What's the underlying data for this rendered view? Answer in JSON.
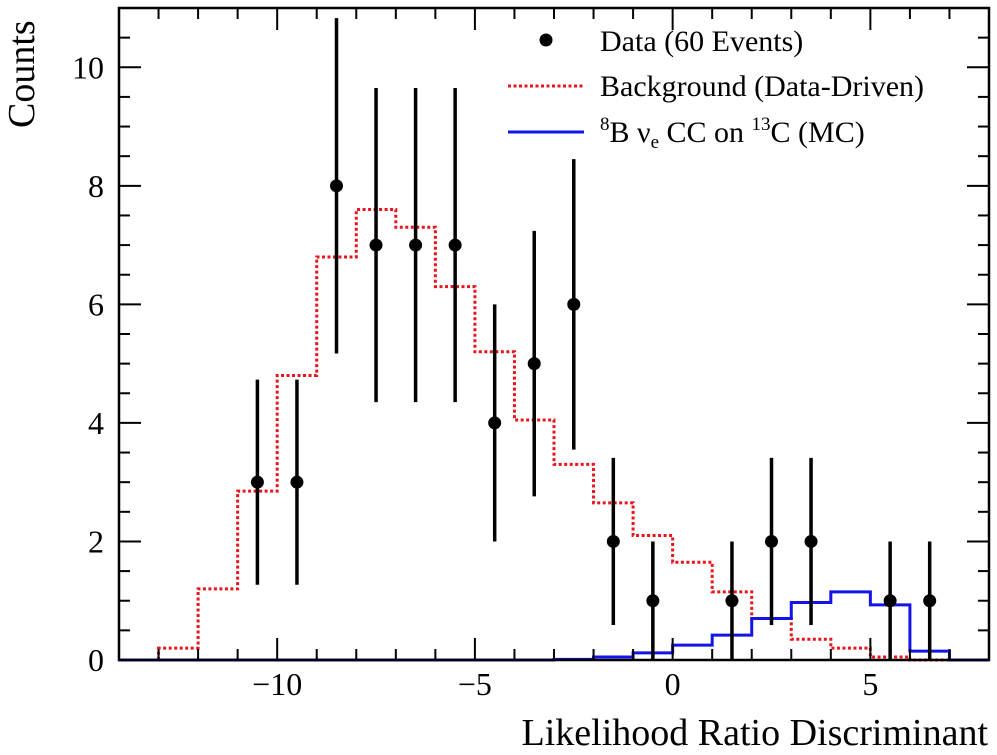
{
  "chart_data": {
    "type": "histogram",
    "xlabel": "Likelihood Ratio Discriminant",
    "ylabel": "Counts",
    "xlim": [
      -14,
      8
    ],
    "ylim": [
      0,
      11
    ],
    "x_ticks": [
      -10,
      -5,
      0,
      5
    ],
    "x_tick_labels": [
      "−10",
      "−5",
      "0",
      "5"
    ],
    "y_ticks": [
      0,
      2,
      4,
      6,
      8,
      10
    ],
    "y_tick_labels": [
      "0",
      "2",
      "4",
      "6",
      "8",
      "10"
    ],
    "legend": {
      "position": "top-right",
      "data": "Data (60 Events)",
      "background": "Background (Data-Driven)",
      "signal_prefix": "8",
      "signal_b": "B ν",
      "signal_sub": "e",
      "signal_mid": " CC on ",
      "signal_sup2": "13",
      "signal_end": "C (MC)"
    },
    "series": [
      {
        "name": "Data (60 Events)",
        "kind": "points_with_errors",
        "color": "#000000",
        "x": [
          -10.5,
          -9.5,
          -8.5,
          -7.5,
          -6.5,
          -5.5,
          -4.5,
          -3.5,
          -2.5,
          -1.5,
          -0.5,
          1.5,
          2.5,
          3.5,
          5.5,
          6.5
        ],
        "y": [
          3,
          3,
          8,
          7,
          7,
          7,
          4,
          5,
          6,
          2,
          1,
          1,
          2,
          2,
          1,
          1
        ],
        "err_low": [
          1.73,
          1.73,
          2.83,
          2.65,
          2.65,
          2.65,
          2.0,
          2.24,
          2.45,
          1.41,
          1.0,
          1.0,
          1.41,
          1.41,
          1.0,
          1.0
        ],
        "err_high": [
          1.73,
          1.73,
          2.83,
          2.65,
          2.65,
          2.65,
          2.0,
          2.24,
          2.45,
          1.41,
          1.0,
          1.0,
          1.41,
          1.41,
          1.0,
          1.0
        ]
      },
      {
        "name": "Background (Data-Driven)",
        "kind": "step",
        "color": "#e8141e",
        "style": "dotted",
        "bin_edges": [
          -13,
          -12,
          -11,
          -10,
          -9,
          -8,
          -7,
          -6,
          -5,
          -4,
          -3,
          -2,
          -1,
          0,
          1,
          2,
          3,
          4,
          5,
          6,
          7,
          8
        ],
        "values": [
          0.2,
          1.2,
          2.85,
          4.8,
          6.8,
          7.6,
          7.3,
          6.3,
          5.2,
          4.05,
          3.3,
          2.65,
          2.1,
          1.65,
          1.15,
          0.7,
          0.35,
          0.2,
          0.05,
          0.0,
          0.0
        ]
      },
      {
        "name": "8B νe CC on 13C (MC)",
        "kind": "step",
        "color": "#1414e6",
        "style": "solid",
        "bin_edges": [
          -14,
          -13,
          -12,
          -11,
          -10,
          -9,
          -8,
          -7,
          -6,
          -5,
          -4,
          -3,
          -2,
          -1,
          0,
          1,
          2,
          3,
          4,
          5,
          6,
          7,
          8
        ],
        "values": [
          0,
          0,
          0,
          0,
          0,
          0,
          0,
          0,
          0,
          0,
          0,
          0.01,
          0.05,
          0.12,
          0.25,
          0.42,
          0.7,
          0.97,
          1.15,
          0.93,
          0.15,
          0.0
        ]
      }
    ]
  }
}
